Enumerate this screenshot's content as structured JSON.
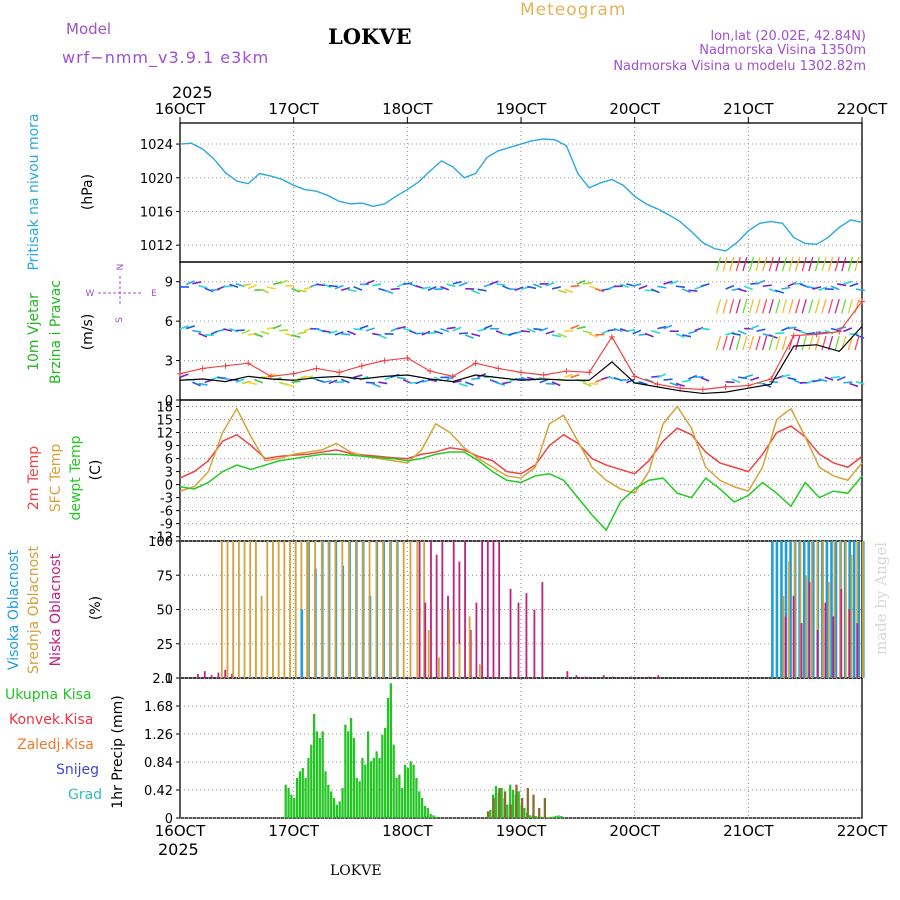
{
  "header": {
    "model_label": "Model",
    "model_name": "wrf−nmm_v3.9.1  e3km",
    "station": "LOKVE",
    "meteogram": "Meteogram",
    "lonlat": "lon,lat (20.02E, 42.84N)",
    "altitude": "Nadmorska Visina 1350m",
    "model_altitude": "Nadmorska Visina u modelu 1302.82m",
    "footer_station": "LOKVE",
    "watermark": "made by Angel",
    "year": "2025"
  },
  "colors": {
    "pressure": "#2aa9e0",
    "wind_label": "#22b822",
    "temp2m": "#ee4444",
    "sfc": "#d7a23a",
    "dewpt": "#22cc22",
    "cloud_high": "#1e9fdc",
    "cloud_mid": "#d4a23a",
    "cloud_low": "#c0207f",
    "total_precip": "#22c422",
    "conv_precip": "#ee3344",
    "frozen": "#f07a2a",
    "snow": "#4444dd",
    "grad": "#33bbbb",
    "title_violet": "#a050d0"
  },
  "chart_data": [
    {
      "type": "line",
      "name": "pressure",
      "title": "Pritisak na nivou mora",
      "ylabel": "(hPa)",
      "ylim": [
        1010,
        1026.5
      ],
      "yticks": [
        1012,
        1016,
        1020,
        1024
      ],
      "x_day_ticks": [
        "16OCT",
        "17OCT",
        "18OCT",
        "19OCT",
        "20OCT",
        "21OCT",
        "22OCT"
      ],
      "x": [
        0,
        0.1,
        0.2,
        0.3,
        0.4,
        0.5,
        0.6,
        0.7,
        0.8,
        0.9,
        1.0,
        1.1,
        1.2,
        1.3,
        1.4,
        1.5,
        1.6,
        1.7,
        1.8,
        1.9,
        2.0,
        2.1,
        2.2,
        2.3,
        2.4,
        2.5,
        2.6,
        2.7,
        2.8,
        2.9,
        3.0,
        3.1,
        3.2,
        3.3,
        3.4,
        3.5,
        3.6,
        3.7,
        3.8,
        3.9,
        4.0,
        4.1,
        4.2,
        4.3,
        4.4,
        4.5,
        4.6,
        4.7,
        4.8,
        4.9,
        5.0,
        5.1,
        5.2,
        5.3,
        5.4,
        5.5,
        5.6,
        5.7,
        5.8,
        5.9,
        6.0
      ],
      "values": [
        1024,
        1024.1,
        1023.4,
        1022.2,
        1020.6,
        1019.6,
        1019.3,
        1020.5,
        1020.2,
        1019.8,
        1019.1,
        1018.6,
        1018.4,
        1017.9,
        1017.2,
        1016.9,
        1017.0,
        1016.6,
        1016.9,
        1017.8,
        1018.6,
        1019.5,
        1020.8,
        1022.0,
        1021.3,
        1020.0,
        1020.5,
        1022.4,
        1023.2,
        1023.6,
        1024.0,
        1024.4,
        1024.6,
        1024.5,
        1023.8,
        1020.5,
        1018.8,
        1019.4,
        1019.8,
        1019.1,
        1017.8,
        1016.9,
        1016.3,
        1015.6,
        1014.8,
        1013.6,
        1012.3,
        1011.6,
        1011.3,
        1012.3,
        1013.7,
        1014.6,
        1014.8,
        1014.6,
        1012.9,
        1012.2,
        1012.1,
        1012.9,
        1014.1,
        1015.0,
        1014.7
      ]
    },
    {
      "type": "line",
      "name": "wind",
      "title": "10m Vjetar Brzina i Pravac",
      "ylabel": "(m/s)",
      "ylim": [
        0,
        10.5
      ],
      "yticks": [
        0,
        3,
        6,
        9
      ],
      "compass": {
        "north": "N",
        "south": "S",
        "east": "E",
        "west": "W"
      },
      "x": [
        0,
        0.2,
        0.4,
        0.6,
        0.8,
        1.0,
        1.2,
        1.4,
        1.6,
        1.8,
        2.0,
        2.2,
        2.4,
        2.6,
        2.8,
        3.0,
        3.2,
        3.4,
        3.6,
        3.8,
        4.0,
        4.2,
        4.4,
        4.6,
        4.8,
        5.0,
        5.2,
        5.4,
        5.6,
        5.8,
        6.0
      ],
      "speed": [
        1.5,
        1.6,
        1.4,
        1.8,
        1.6,
        1.5,
        1.7,
        1.8,
        1.6,
        1.8,
        1.9,
        1.6,
        1.4,
        1.9,
        1.7,
        1.5,
        1.6,
        1.5,
        1.5,
        2.9,
        1.3,
        1.0,
        0.7,
        0.5,
        0.6,
        0.9,
        1.2,
        4.1,
        4.2,
        3.7,
        5.6
      ],
      "gust": [
        2.0,
        2.4,
        2.6,
        2.8,
        1.8,
        2.0,
        2.4,
        2.1,
        2.6,
        3.0,
        3.2,
        2.2,
        1.8,
        2.8,
        2.4,
        2.1,
        1.9,
        2.2,
        2.1,
        4.8,
        1.8,
        1.2,
        0.9,
        0.8,
        1.0,
        1.1,
        1.6,
        4.9,
        5.0,
        5.2,
        7.5
      ]
    },
    {
      "type": "line",
      "name": "temperature",
      "title": "2m Temp / SFC Temp / dewpt Temp",
      "series_labels": [
        "2m Temp",
        "SFC Temp",
        "dewpt Temp"
      ],
      "ylabel": "(C)",
      "ylim": [
        -13,
        19.5
      ],
      "yticks": [
        -12,
        -9,
        -6,
        -3,
        0,
        3,
        6,
        9,
        12,
        15,
        18
      ],
      "x": [
        0,
        0.125,
        0.25,
        0.375,
        0.5,
        0.625,
        0.75,
        0.875,
        1.0,
        1.125,
        1.25,
        1.375,
        1.5,
        1.625,
        1.75,
        1.875,
        2.0,
        2.125,
        2.25,
        2.375,
        2.5,
        2.625,
        2.75,
        2.875,
        3.0,
        3.125,
        3.25,
        3.375,
        3.5,
        3.625,
        3.75,
        3.875,
        4.0,
        4.125,
        4.25,
        4.375,
        4.5,
        4.625,
        4.75,
        4.875,
        5.0,
        5.125,
        5.25,
        5.375,
        5.5,
        5.625,
        5.75,
        5.875,
        6.0
      ],
      "series": [
        {
          "name": "2m Temp",
          "values": [
            1.5,
            3.0,
            5.5,
            10.0,
            11.5,
            9.0,
            6.0,
            6.5,
            6.8,
            7.0,
            7.5,
            8.0,
            7.2,
            6.8,
            6.5,
            6.2,
            6.0,
            7.0,
            7.5,
            8.5,
            8.0,
            6.5,
            5.5,
            3.0,
            2.5,
            4.5,
            9.0,
            11.5,
            9.5,
            6.0,
            4.5,
            3.5,
            2.5,
            5.5,
            10.0,
            13.0,
            11.5,
            7.5,
            5.0,
            4.0,
            3.0,
            7.0,
            12.0,
            13.5,
            11.0,
            7.0,
            5.0,
            4.0,
            6.5
          ]
        },
        {
          "name": "SFC Temp",
          "values": [
            -1.5,
            -0.5,
            3.0,
            12.0,
            17.5,
            11.0,
            5.5,
            6.0,
            7.0,
            7.5,
            8.0,
            9.5,
            7.5,
            6.5,
            6.0,
            5.5,
            5.0,
            8.0,
            14.0,
            12.0,
            8.5,
            6.0,
            4.0,
            2.0,
            1.5,
            4.0,
            14.0,
            16.0,
            10.0,
            4.0,
            1.0,
            -1.0,
            -2.0,
            3.0,
            14.0,
            18.0,
            13.0,
            4.0,
            1.0,
            -0.5,
            -1.5,
            4.0,
            15.0,
            17.5,
            11.0,
            4.0,
            2.0,
            1.0,
            5.0
          ]
        },
        {
          "name": "dewpt Temp",
          "values": [
            -0.5,
            -1.0,
            0.5,
            3.0,
            4.5,
            3.5,
            4.5,
            5.5,
            6.0,
            6.5,
            7.0,
            7.0,
            6.8,
            6.5,
            6.2,
            6.0,
            5.5,
            6.0,
            7.0,
            7.5,
            7.5,
            5.5,
            3.0,
            1.0,
            0.5,
            2.0,
            2.5,
            1.0,
            -3.0,
            -7.0,
            -10.5,
            -4.0,
            -1.0,
            1.0,
            1.5,
            -2.0,
            -3.0,
            1.5,
            -1.0,
            -4.0,
            -2.5,
            0.5,
            -2.0,
            -5.0,
            0.5,
            -3.0,
            -1.5,
            -2.0,
            2.0
          ]
        }
      ]
    },
    {
      "type": "bar",
      "name": "clouds",
      "title": "Visoka / Srednja / Niska Oblacnost",
      "series_labels": [
        "Visoka Oblacnost",
        "Srednja Oblacnost",
        "Niska Oblacnost"
      ],
      "ylabel": "(%)",
      "ylim": [
        0,
        100
      ],
      "yticks": [
        0,
        25,
        50,
        75,
        100
      ],
      "periods": [
        {
          "layer": "low",
          "start": 0.15,
          "end": 0.45,
          "step": 0.06,
          "values": [
            3,
            5,
            2,
            4,
            6,
            3
          ]
        },
        {
          "layer": "mid",
          "start": 0.36,
          "end": 1.12,
          "step": 0.05,
          "values": [
            100,
            100,
            100,
            100,
            100,
            100,
            100,
            60,
            100,
            100,
            100,
            100,
            100,
            100,
            100,
            100
          ]
        },
        {
          "layer": "high",
          "start": 1.06,
          "end": 1.25,
          "step": 0.06,
          "values": [
            50,
            100,
            80,
            100
          ]
        },
        {
          "layer": "high",
          "start": 1.3,
          "end": 1.9,
          "step": 0.06,
          "values": [
            100,
            100,
            82,
            100,
            100,
            100,
            60,
            100,
            100,
            100,
            100
          ]
        },
        {
          "layer": "mid",
          "start": 1.12,
          "end": 2.15,
          "step": 0.06,
          "values": [
            100,
            100,
            100,
            100,
            100,
            100,
            100,
            100,
            100,
            100,
            100,
            100,
            100,
            100,
            100,
            100,
            100,
            100
          ]
        },
        {
          "layer": "low",
          "start": 2.1,
          "end": 2.8,
          "step": 0.05,
          "values": [
            100,
            55,
            100,
            90,
            100,
            60,
            100,
            85,
            100,
            35,
            55,
            100,
            100,
            100,
            100
          ]
        },
        {
          "layer": "mid",
          "start": 2.18,
          "end": 2.65,
          "step": 0.09,
          "values": [
            35,
            15,
            50,
            25,
            45,
            10
          ]
        },
        {
          "layer": "low",
          "start": 2.9,
          "end": 3.2,
          "step": 0.07,
          "values": [
            65,
            55,
            62,
            50,
            70
          ]
        },
        {
          "layer": "low",
          "start": 3.4,
          "end": 4.2,
          "step": 0.08,
          "values": [
            5,
            2,
            1,
            0,
            2,
            1,
            0,
            1,
            0,
            1,
            2
          ]
        },
        {
          "layer": "high",
          "start": 5.2,
          "end": 6.0,
          "step": 0.04,
          "values": [
            100,
            100,
            100,
            100,
            100,
            100,
            100,
            100,
            100,
            100,
            100,
            100,
            100,
            100,
            100,
            100,
            100,
            100,
            100,
            100,
            100
          ]
        },
        {
          "layer": "mid",
          "start": 5.3,
          "end": 6.0,
          "step": 0.05,
          "values": [
            60,
            85,
            100,
            100,
            75,
            100,
            100,
            100,
            70,
            100,
            100,
            100,
            90,
            100,
            100
          ]
        },
        {
          "layer": "low",
          "start": 5.32,
          "end": 6.0,
          "step": 0.07,
          "values": [
            45,
            60,
            40,
            70,
            35,
            55,
            45,
            65,
            50,
            40
          ]
        }
      ]
    },
    {
      "type": "bar",
      "name": "precipitation",
      "title": "1hr Precip",
      "ylabel": "1hr Precip (mm)",
      "legend": [
        "Ukupna Kisa",
        "Konvek.Kisa",
        "Zaledj.Kisa",
        "Snijeg",
        "Grad"
      ],
      "ylim": [
        0,
        2.1
      ],
      "yticks": [
        0,
        0.42,
        0.84,
        1.26,
        1.68,
        2.1
      ],
      "ytick_labels": [
        "0",
        "0.42",
        "0.84",
        "1.26",
        "1.68",
        "2.1"
      ],
      "bar_width_days": 0.025,
      "total_x0": 0.92,
      "total_values": [
        0.5,
        0.45,
        0.35,
        0.3,
        0.6,
        0.7,
        0.75,
        0.6,
        0.9,
        1.1,
        1.56,
        1.3,
        1.2,
        1.3,
        0.7,
        0.5,
        0.4,
        0.3,
        0.2,
        0.25,
        0.45,
        1.4,
        1.3,
        1.5,
        1.2,
        0.6,
        0.55,
        0.9,
        0.8,
        1.3,
        0.85,
        0.9,
        1.0,
        0.9,
        1.25,
        1.35,
        1.8,
        2.02,
        1.1,
        0.6,
        0.65,
        0.45,
        0.8,
        0.75,
        0.85,
        0.8,
        0.6,
        0.4,
        0.3,
        0.18,
        0.15,
        0.06,
        0.04,
        0.02
      ],
      "frozen_x0": 2.7,
      "frozen_values": [
        0.1,
        0.3,
        0.45,
        0.4,
        0.2,
        0.5,
        0.3,
        0.45,
        0.35,
        0.15,
        0.3
      ],
      "late_x0": 2.72,
      "late_values": [
        0.12,
        0.35,
        0.48,
        0.38,
        0.45,
        0.3,
        0.2,
        0.5,
        0.42,
        0.35,
        0.4,
        0.2,
        0.15,
        0.08,
        0.04,
        0.04,
        0.03,
        0.02,
        0.02,
        0.01,
        0.01,
        0.01,
        0.02,
        0.03,
        0.04,
        0.03
      ]
    }
  ]
}
